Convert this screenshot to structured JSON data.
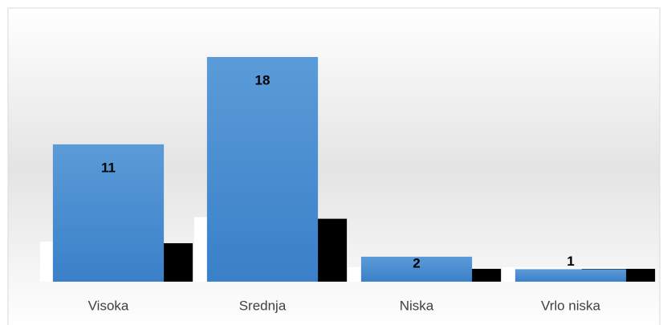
{
  "chart_data": {
    "type": "bar",
    "categories": [
      "Visoka",
      "Srednja",
      "Niska",
      "Vrlo niska"
    ],
    "values": [
      11,
      18,
      2,
      1
    ],
    "color": "#4a8fd4"
  }
}
